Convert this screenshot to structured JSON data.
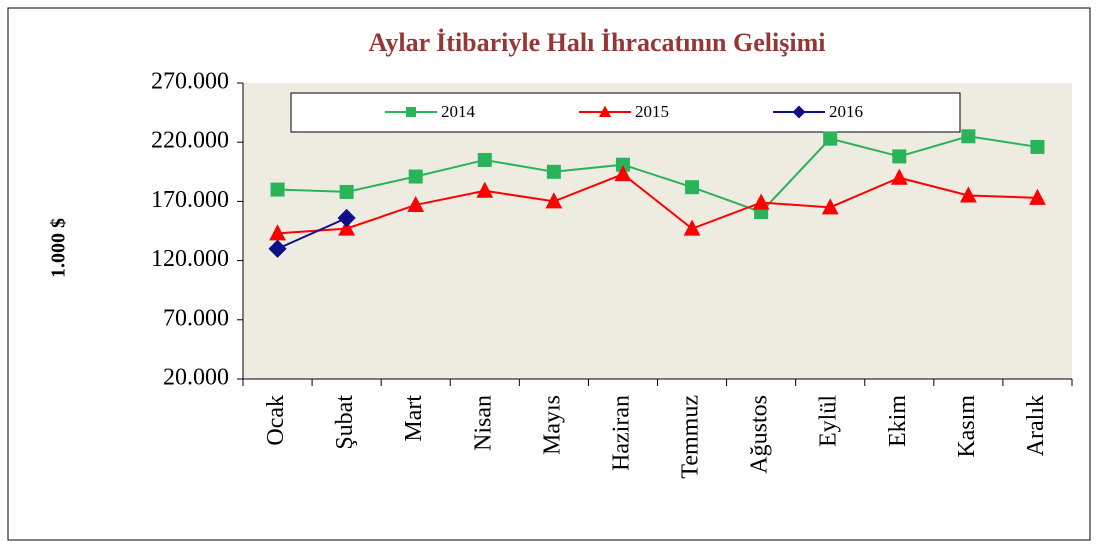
{
  "chart_data": {
    "type": "line",
    "title": "Aylar İtibariyle Halı İhracatının Gelişimi",
    "y_label": "1.000 $",
    "categories": [
      "Ocak",
      "Şubat",
      "Mart",
      "Nisan",
      "Mayıs",
      "Haziran",
      "Temmuz",
      "Ağustos",
      "Eylül",
      "Ekim",
      "Kasım",
      "Aralık"
    ],
    "series": [
      {
        "name": "2014",
        "color": "#2ab45a",
        "marker": "square",
        "values": [
          180000,
          178000,
          191000,
          205000,
          195000,
          201000,
          182000,
          161000,
          223000,
          208000,
          225000,
          216000
        ]
      },
      {
        "name": "2015",
        "color": "#ff0000",
        "marker": "triangle",
        "values": [
          143000,
          147000,
          167000,
          179000,
          170000,
          193000,
          147000,
          169000,
          165000,
          190000,
          175000,
          173000
        ]
      },
      {
        "name": "2016",
        "color": "#0f0f88",
        "marker": "diamond",
        "values": [
          130000,
          156000,
          null,
          null,
          null,
          null,
          null,
          null,
          null,
          null,
          null,
          null
        ]
      }
    ],
    "ylim": [
      20000,
      270000
    ],
    "yticks": [
      {
        "value": 20000,
        "label": "20.000"
      },
      {
        "value": 70000,
        "label": "70.000"
      },
      {
        "value": 120000,
        "label": "120.000"
      },
      {
        "value": 170000,
        "label": "170.000"
      },
      {
        "value": 220000,
        "label": "220.000"
      },
      {
        "value": 270000,
        "label": "270.000"
      }
    ],
    "legend": "top"
  }
}
